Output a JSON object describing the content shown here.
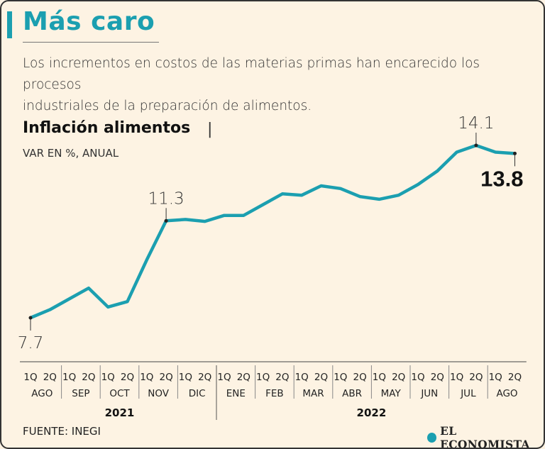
{
  "header": {
    "title": "Más caro",
    "subtitle_line1": "Los incrementos en costos de las materias primas han encarecido los procesos",
    "subtitle_line2": "industriales de la preparación de alimentos."
  },
  "footer": {
    "source": "FUENTE: INEGI",
    "logo_text": "EL ECONOMISTA",
    "logo_icon": "globe-icon"
  },
  "colors": {
    "accent": "#1b9fb0",
    "text": "#222222",
    "background": "#fdf3e3"
  },
  "chart_data": {
    "type": "line",
    "title": "Inflación alimentos",
    "title_separator": "|",
    "subtitle": "VAR EN %, ANUAL",
    "ylabel": "VAR EN %, ANUAL",
    "ylim": [
      7.7,
      14.1
    ],
    "grid": false,
    "half_labels": [
      "1Q",
      "2Q"
    ],
    "months": [
      "AGO",
      "SEP",
      "OCT",
      "NOV",
      "DIC",
      "ENE",
      "FEB",
      "MAR",
      "ABR",
      "MAY",
      "JUN",
      "JUL",
      "AGO"
    ],
    "years": [
      {
        "label": "2021",
        "month_count": 5
      },
      {
        "label": "2022",
        "month_count": 8
      }
    ],
    "series": [
      {
        "name": "Inflación alimentos",
        "values": [
          7.7,
          8.0,
          8.4,
          8.8,
          8.1,
          8.3,
          9.85,
          11.3,
          11.35,
          11.28,
          11.5,
          11.5,
          11.9,
          12.3,
          12.25,
          12.6,
          12.5,
          12.2,
          12.1,
          12.25,
          12.65,
          13.15,
          13.85,
          14.1,
          13.85,
          13.8
        ]
      }
    ],
    "annotations": [
      {
        "index": 0,
        "label": "7.7",
        "position": "below",
        "emphasis": false
      },
      {
        "index": 7,
        "label": "11.3",
        "position": "above",
        "emphasis": false
      },
      {
        "index": 23,
        "label": "14.1",
        "position": "above",
        "emphasis": false
      },
      {
        "index": 25,
        "label": "13.8",
        "position": "below",
        "emphasis": true
      }
    ]
  }
}
